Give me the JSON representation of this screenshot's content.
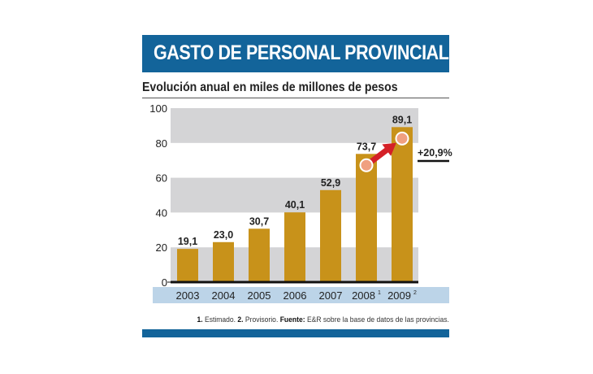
{
  "header": {
    "title": "GASTO DE PERSONAL PROVINCIAL",
    "subtitle": "Evolución anual en miles de millones de pesos"
  },
  "footnote": {
    "n1": "1.",
    "t1": " Estimado. ",
    "n2": "2.",
    "t2": " Provisorio. ",
    "source_label": "Fuente:",
    "source": " E&R sobre la base de datos de las provincias."
  },
  "colors": {
    "title_bar": "#13649a",
    "bar": "#c8921a",
    "band": "#d4d4d6",
    "axis_band": "#bcd4e8",
    "arrow": "#d42027",
    "marker": "#f0a080"
  },
  "chart_data": {
    "type": "bar",
    "categories": [
      "2003",
      "2004",
      "2005",
      "2006",
      "2007",
      "2008",
      "2009"
    ],
    "category_superscripts": [
      "",
      "",
      "",
      "",
      "",
      "1",
      "2"
    ],
    "values": [
      19.1,
      23.0,
      30.7,
      40.1,
      52.9,
      73.7,
      89.1
    ],
    "data_labels": [
      "19,1",
      "23,0",
      "30,7",
      "40,1",
      "52,9",
      "73,7",
      "89,1"
    ],
    "ylim": [
      0,
      100
    ],
    "yticks": [
      0,
      20,
      40,
      60,
      80,
      100
    ],
    "grid": "alternating horizontal bands",
    "annotation": {
      "text": "+20,9%",
      "from": "2008",
      "to": "2009",
      "type": "arrow"
    }
  }
}
